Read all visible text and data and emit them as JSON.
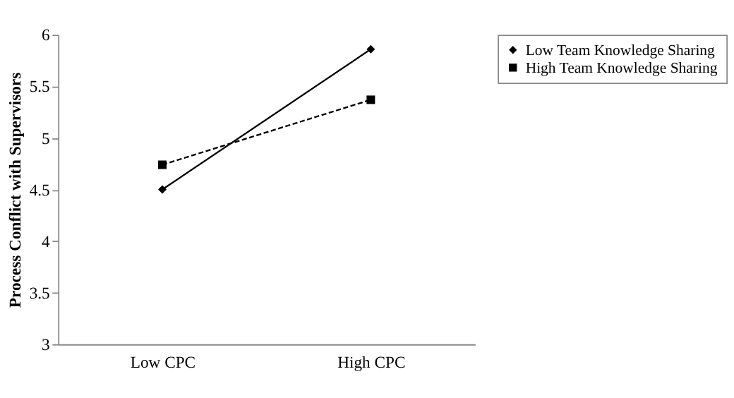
{
  "chart_data": {
    "type": "line",
    "ylabel": "Process Conflict with Supervisors",
    "categories": [
      "Low CPC",
      "High CPC"
    ],
    "series": [
      {
        "name": "Low Team Knowledge Sharing",
        "color": "#000000",
        "values": [
          4.5,
          5.86
        ],
        "marker": "diamond",
        "line_style": "solid"
      },
      {
        "name": "High Team Knowledge Sharing",
        "color": "#000000",
        "values": [
          4.74,
          5.37
        ],
        "marker": "square",
        "line_style": "dashed"
      }
    ],
    "ylim": [
      3,
      6
    ],
    "yticks": [
      3,
      3.5,
      4,
      4.5,
      5,
      5.5,
      6
    ],
    "grid": false,
    "legend": "right"
  }
}
